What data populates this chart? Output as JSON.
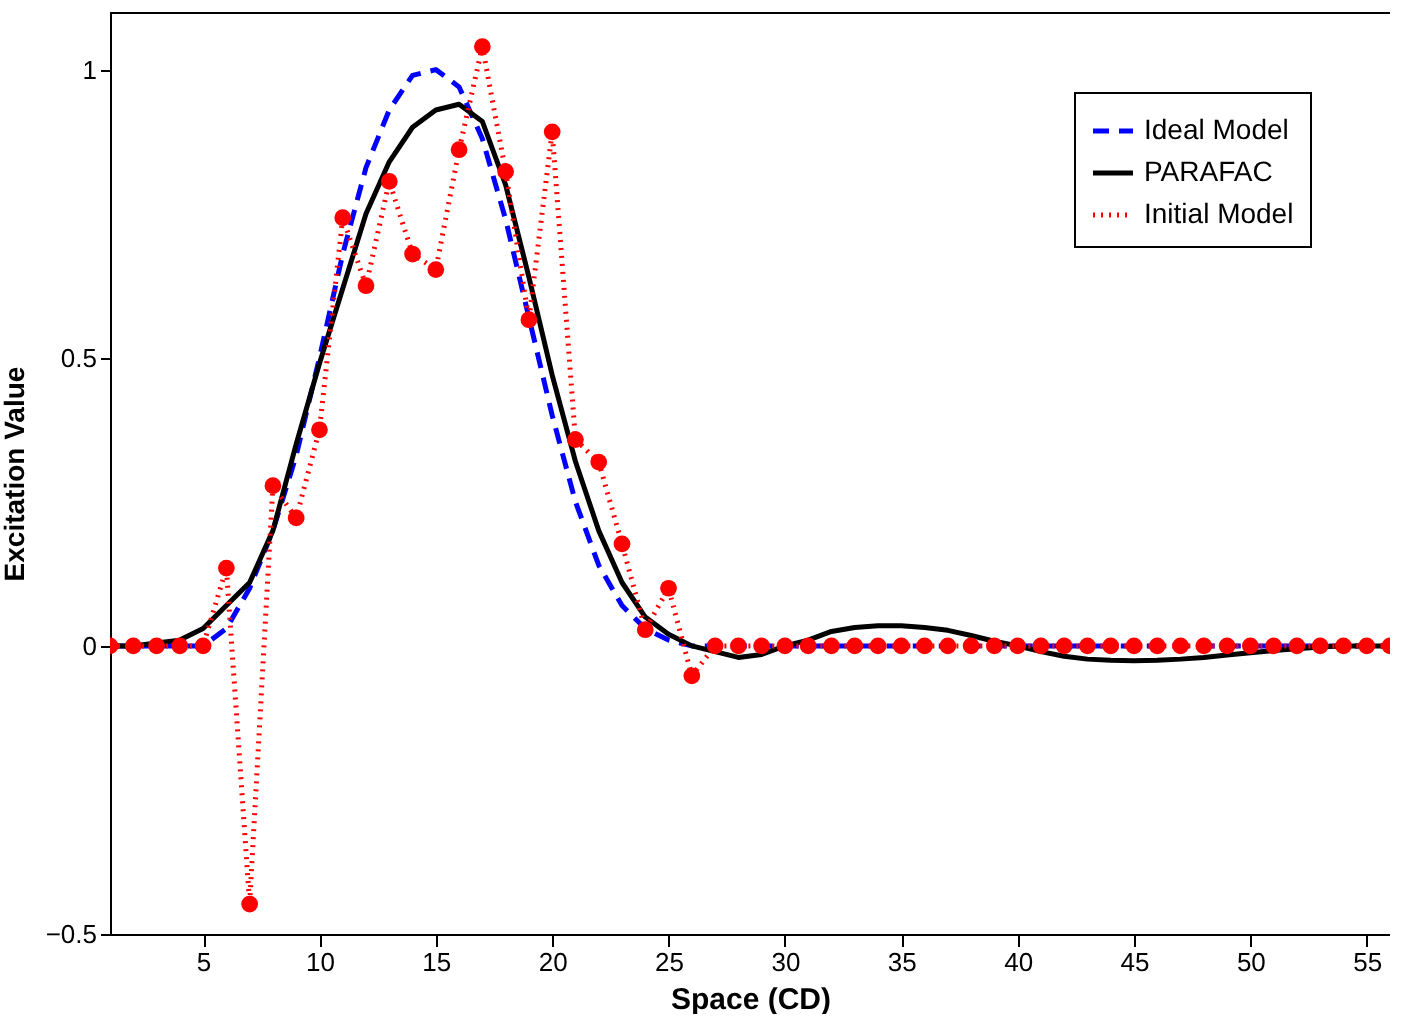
{
  "chart_data": {
    "type": "line",
    "xlabel": "Space (CD)",
    "ylabel": "Excitation Value",
    "x": [
      1,
      2,
      3,
      4,
      5,
      6,
      7,
      8,
      9,
      10,
      11,
      12,
      13,
      14,
      15,
      16,
      17,
      18,
      19,
      20,
      21,
      22,
      23,
      24,
      25,
      26,
      27,
      28,
      29,
      30,
      31,
      32,
      33,
      34,
      35,
      36,
      37,
      38,
      39,
      40,
      41,
      42,
      43,
      44,
      45,
      46,
      47,
      48,
      49,
      50,
      51,
      52,
      53,
      54,
      55,
      56
    ],
    "xlim": [
      1,
      56
    ],
    "xticks": [
      5,
      10,
      15,
      20,
      25,
      30,
      35,
      40,
      45,
      50,
      55
    ],
    "ylim": [
      -0.5,
      1.1
    ],
    "yticks": [
      -0.5,
      0,
      0.5,
      1
    ],
    "grid": false,
    "legend": "top right",
    "series": [
      {
        "name": "Ideal Model",
        "color": "#0000ff",
        "line_style": "dashed",
        "marker": "none",
        "values": [
          0,
          0,
          0,
          0,
          0,
          0.03,
          0.1,
          0.2,
          0.33,
          0.5,
          0.68,
          0.83,
          0.93,
          0.99,
          1.0,
          0.97,
          0.88,
          0.74,
          0.57,
          0.4,
          0.25,
          0.14,
          0.07,
          0.03,
          0.01,
          0,
          0,
          0,
          0,
          0,
          0,
          0,
          0,
          0,
          0,
          0,
          0,
          0,
          0,
          0,
          0,
          0,
          0,
          0,
          0,
          0,
          0,
          0,
          0,
          0,
          0,
          0,
          0,
          0,
          0,
          0
        ]
      },
      {
        "name": "PARAFAC",
        "color": "#000000",
        "line_style": "solid",
        "marker": "none",
        "values": [
          0,
          0,
          0.005,
          0.01,
          0.03,
          0.07,
          0.11,
          0.2,
          0.35,
          0.49,
          0.62,
          0.75,
          0.84,
          0.9,
          0.93,
          0.94,
          0.91,
          0.8,
          0.64,
          0.47,
          0.32,
          0.2,
          0.11,
          0.05,
          0.02,
          0,
          -0.01,
          -0.02,
          -0.015,
          0,
          0.01,
          0.025,
          0.032,
          0.035,
          0.035,
          0.032,
          0.027,
          0.018,
          0.008,
          0,
          -0.01,
          -0.018,
          -0.023,
          -0.025,
          -0.026,
          -0.025,
          -0.023,
          -0.02,
          -0.016,
          -0.012,
          -0.008,
          -0.005,
          -0.002,
          0,
          0,
          0
        ]
      },
      {
        "name": "Initial Model",
        "color": "#ff0000",
        "line_style": "dotted",
        "marker": "circle",
        "values": [
          0,
          0,
          0,
          0,
          0,
          0.135,
          -0.448,
          0.278,
          0.222,
          0.375,
          0.743,
          0.625,
          0.806,
          0.68,
          0.653,
          0.861,
          1.04,
          0.823,
          0.566,
          0.892,
          0.358,
          0.319,
          0.177,
          0.028,
          0.1,
          -0.052,
          0,
          0,
          0,
          0,
          0,
          0,
          0,
          0,
          0,
          0,
          0,
          0,
          0,
          0,
          0,
          0,
          0,
          0,
          0,
          0,
          0,
          0,
          0,
          0,
          0,
          0,
          0,
          0,
          0,
          0
        ]
      }
    ]
  }
}
